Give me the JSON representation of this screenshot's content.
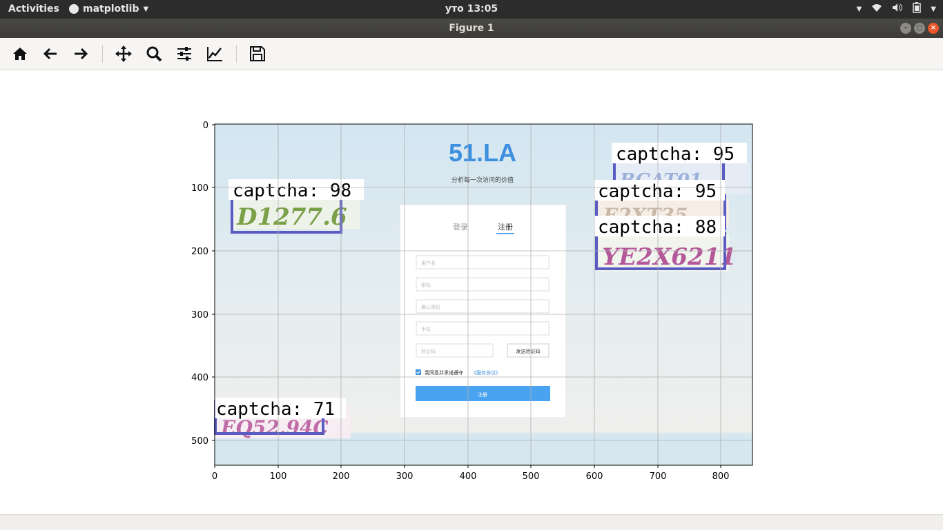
{
  "topbar": {
    "activities": "Activities",
    "app_name": "matplotlib",
    "clock": "уто 13:05"
  },
  "window": {
    "title": "Figure 1"
  },
  "toolbar": {
    "icons": [
      "home-icon",
      "back-arrow-icon",
      "forward-arrow-icon",
      "pan-icon",
      "zoom-icon",
      "configure-subplots-icon",
      "edit-axis-icon",
      "save-icon"
    ]
  },
  "plot": {
    "xticks": [
      "0",
      "100",
      "200",
      "300",
      "400",
      "500",
      "600",
      "700",
      "800"
    ],
    "yticks": [
      "0",
      "100",
      "200",
      "300",
      "400",
      "500"
    ]
  },
  "webpage": {
    "logo": "51.LA",
    "slogan": "分析每一次访问的价值",
    "tab_login": "登录",
    "tab_register": "注册",
    "field_username": "用户名",
    "field_password": "密码",
    "field_confirm": "确认密码",
    "field_phone": "手机",
    "field_code": "验证码",
    "send_code_button": "发送验证码",
    "agree_text": "我同意并承诺遵守",
    "agree_link": "《服务协议》",
    "register_button": "注册"
  },
  "detections": [
    {
      "label": "captcha: 98",
      "captcha_text": "D1277.6"
    },
    {
      "label": "captcha: 95",
      "captcha_text": "BGAT01"
    },
    {
      "label": "captcha: 95",
      "captcha_text": "E2XT35"
    },
    {
      "label": "captcha: 88",
      "captcha_text": "YE2X6211"
    },
    {
      "label": "captcha: 71",
      "captcha_text": "EQ52.94C"
    }
  ],
  "colors": {
    "box": "#5b5cc2",
    "background": "#d6e7f0",
    "accent": "#4aa3f0"
  }
}
